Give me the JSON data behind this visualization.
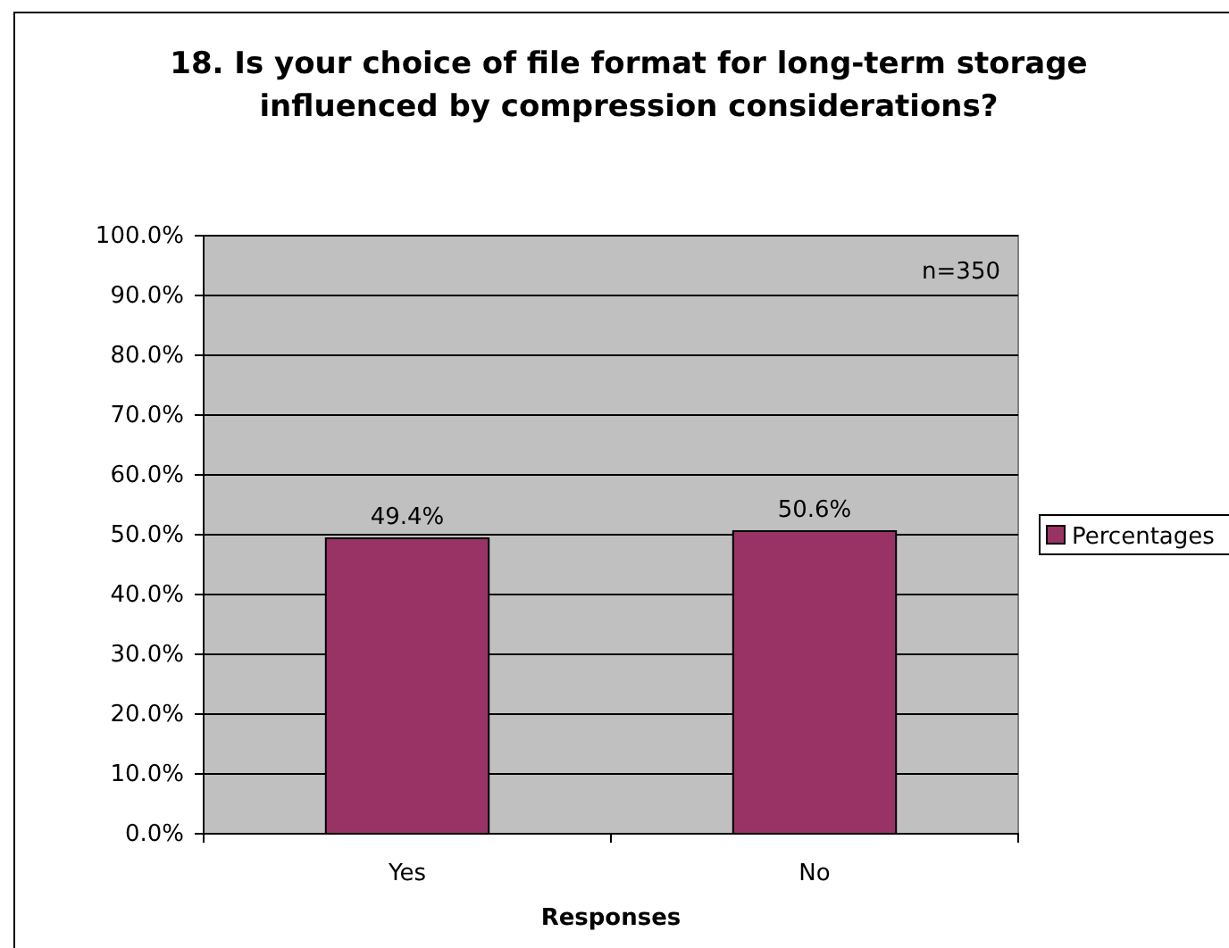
{
  "chart_data": {
    "type": "bar",
    "title": "18. Is your choice of file format for long-term storage influenced by compression considerations?",
    "xlabel": "Responses",
    "categories": [
      "Yes",
      "No"
    ],
    "series": [
      {
        "name": "Percentages",
        "color": "#993366",
        "values": [
          49.4,
          50.6
        ],
        "value_labels": [
          "49.4%",
          "50.6%"
        ]
      }
    ],
    "ylim": [
      0,
      100
    ],
    "yticks": [
      {
        "value": 0,
        "label": "0.0%"
      },
      {
        "value": 10,
        "label": "10.0%"
      },
      {
        "value": 20,
        "label": "20.0%"
      },
      {
        "value": 30,
        "label": "30.0%"
      },
      {
        "value": 40,
        "label": "40.0%"
      },
      {
        "value": 50,
        "label": "50.0%"
      },
      {
        "value": 60,
        "label": "60.0%"
      },
      {
        "value": 70,
        "label": "70.0%"
      },
      {
        "value": 80,
        "label": "80.0%"
      },
      {
        "value": 90,
        "label": "90.0%"
      },
      {
        "value": 100,
        "label": "100.0%"
      }
    ],
    "grid": "y",
    "legend": "right",
    "annotations": [
      "n=350"
    ]
  }
}
